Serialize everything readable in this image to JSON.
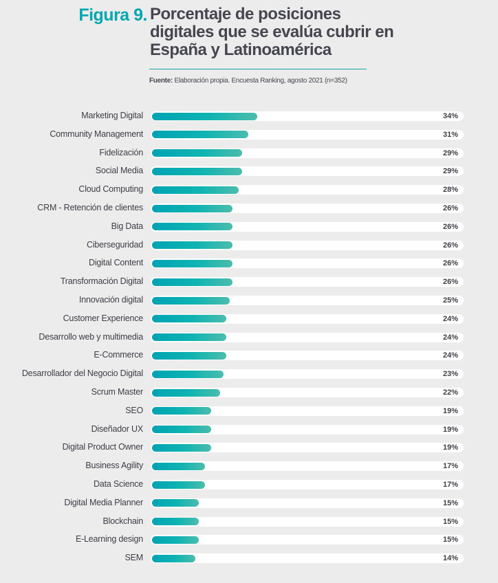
{
  "header": {
    "figure_label": "Figura 9.",
    "title": "Porcentaje de posiciones digitales que se evalúa cubrir en España y Latinoamérica",
    "source_label": "Fuente:",
    "source_text": " Elaboración propia. Encuesta Ranking, agosto 2021 (n=352)"
  },
  "chart_data": {
    "type": "bar",
    "orientation": "horizontal",
    "title": "Porcentaje de posiciones digitales que se evalúa cubrir en España y Latinoamérica",
    "xlim": [
      0,
      100
    ],
    "unit": "%",
    "bar_color": "#0fb4b2",
    "track_color": "#ffffff",
    "categories": [
      "Marketing Digital",
      "Community Management",
      "Fidelización",
      "Social Media",
      "Cloud Computing",
      "CRM - Retención de clientes",
      "Big Data",
      "Ciberseguridad",
      "Digital Content",
      "Transformación Digital",
      "Innovación digital",
      "Customer Experience",
      "Desarrollo web y multimedia",
      "E-Commerce",
      "Desarrollador del Negocio Digital",
      "Scrum Master",
      "SEO",
      "Diseñador UX",
      "Digital Product Owner",
      "Business Agility",
      "Data Science",
      "Digital Media Planner",
      "Blockchain",
      "E-Learning design",
      "SEM"
    ],
    "values": [
      34,
      31,
      29,
      29,
      28,
      26,
      26,
      26,
      26,
      26,
      25,
      24,
      24,
      24,
      23,
      22,
      19,
      19,
      19,
      17,
      17,
      15,
      15,
      15,
      14
    ],
    "labels": [
      "34%",
      "31%",
      "29%",
      "29%",
      "28%",
      "26%",
      "26%",
      "26%",
      "26%",
      "26%",
      "25%",
      "24%",
      "24%",
      "24%",
      "23%",
      "22%",
      "19%",
      "19%",
      "19%",
      "17%",
      "17%",
      "15%",
      "15%",
      "15%",
      "14%"
    ]
  }
}
